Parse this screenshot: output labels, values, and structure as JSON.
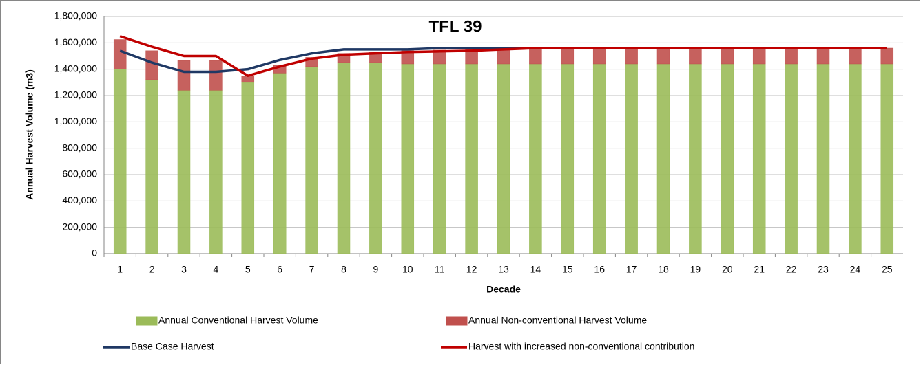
{
  "chart_data": {
    "type": "bar_line",
    "title": "TFL 39",
    "x_label": "Decade",
    "y_label": "Annual Harvest Volume (m3)",
    "categories": [
      "1",
      "2",
      "3",
      "4",
      "5",
      "6",
      "7",
      "8",
      "9",
      "10",
      "11",
      "12",
      "13",
      "14",
      "15",
      "16",
      "17",
      "18",
      "19",
      "20",
      "21",
      "22",
      "23",
      "24",
      "25"
    ],
    "series": [
      {
        "name": "Annual Conventional Harvest Volume",
        "kind": "bar",
        "color": "#9bbb59",
        "values": [
          1400000,
          1320000,
          1240000,
          1240000,
          1300000,
          1370000,
          1420000,
          1450000,
          1450000,
          1440000,
          1440000,
          1440000,
          1440000,
          1440000,
          1440000,
          1440000,
          1440000,
          1440000,
          1440000,
          1440000,
          1440000,
          1440000,
          1440000,
          1440000,
          1440000
        ]
      },
      {
        "name": "Annual Non-conventional Harvest Volume",
        "kind": "bar",
        "color": "#c0504d",
        "values": [
          225000,
          220000,
          225000,
          225000,
          50000,
          60000,
          70000,
          70000,
          80000,
          100000,
          105000,
          110000,
          115000,
          120000,
          120000,
          120000,
          120000,
          120000,
          120000,
          120000,
          120000,
          120000,
          120000,
          120000,
          120000
        ]
      },
      {
        "name": "Base Case Harvest",
        "kind": "line",
        "color": "#1f3864",
        "values": [
          1540000,
          1450000,
          1380000,
          1380000,
          1400000,
          1470000,
          1520000,
          1550000,
          1550000,
          1550000,
          1560000,
          1560000,
          1560000,
          1560000,
          1560000,
          1560000,
          1560000,
          1560000,
          1560000,
          1560000,
          1560000,
          1560000,
          1560000,
          1560000,
          1560000
        ]
      },
      {
        "name": "Harvest with increased non-conventional contribution",
        "kind": "line",
        "color": "#c00000",
        "values": [
          1650000,
          1570000,
          1500000,
          1500000,
          1350000,
          1420000,
          1480000,
          1510000,
          1520000,
          1530000,
          1535000,
          1540000,
          1550000,
          1560000,
          1560000,
          1560000,
          1560000,
          1560000,
          1560000,
          1560000,
          1560000,
          1560000,
          1560000,
          1560000,
          1560000
        ]
      }
    ],
    "stacked": true,
    "ylim": [
      0,
      1800000
    ],
    "yticks": [
      0,
      {
        "value": 200000,
        "label": "200,000"
      },
      {
        "value": 400000,
        "label": "400,000"
      },
      {
        "value": 600000,
        "label": "600,000"
      },
      {
        "value": 800000,
        "label": "800,000"
      },
      {
        "value": 1000000,
        "label": "1,000,000"
      },
      {
        "value": 1200000,
        "label": "1,200,000"
      },
      {
        "value": 1400000,
        "label": "1,400,000"
      },
      {
        "value": 1600000,
        "label": "1,600,000"
      },
      {
        "value": 1800000,
        "label": "1,800,000"
      }
    ],
    "grid": true,
    "legend": "bottom"
  }
}
